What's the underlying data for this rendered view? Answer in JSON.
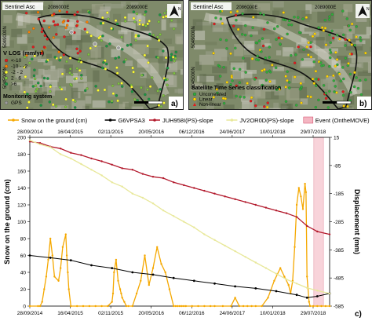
{
  "panel_a": {
    "label": "a)",
    "basemap_label": "Sentinel Asc",
    "north_label": "N",
    "x_ticks": [
      "2086000E",
      "2089000E"
    ],
    "y_ticks": [
      "5049000N",
      "5045000N"
    ],
    "legend": {
      "title": "V LOS (mm/yr)",
      "entries": [
        "<-10",
        "-10 - -2",
        "-2 - 2",
        "2 - 6",
        ">6"
      ],
      "colors": [
        "#e41a1c",
        "#ff7f00",
        "#ffff33",
        "#7fc241",
        "#1a9641"
      ],
      "system_title": "Monitoring system",
      "system_entry": "GPS",
      "system_color": "#9e9e9e"
    }
  },
  "panel_b": {
    "label": "b)",
    "basemap_label": "Sentinel Asc",
    "north_label": "N",
    "x_ticks": [
      "2086000E",
      "2089000E"
    ],
    "y_ticks": [
      "5049000N",
      "5045000N"
    ],
    "legend": {
      "title": "Satellite Time Series classification",
      "entries": [
        "Uncorrelated",
        "Linear",
        "Non-linear"
      ],
      "colors": [
        "#2fae3a",
        "#ffd400",
        "#e41a1c"
      ]
    }
  },
  "chart_data": {
    "type": "line",
    "panel_label": "c)",
    "x_ticks": [
      "28/09/2014",
      "16/04/2015",
      "02/11/2015",
      "20/05/2016",
      "06/12/2016",
      "24/06/2017",
      "10/01/2018",
      "29/07/2018"
    ],
    "x_ticks_top": [
      "28/09/2014",
      "16/04/2015",
      "02/11/2015",
      "20/05/2016",
      "06/12/2016",
      "24/06/2017",
      "10/01/2018",
      "29/07/2018"
    ],
    "ylabel_left": "Snow on the ground (cm)",
    "ylabel_right": "Displacement (mm)",
    "ylim_left": [
      0,
      200
    ],
    "yticks_left": [
      0,
      20,
      40,
      60,
      80,
      100,
      120,
      140,
      160,
      180,
      200
    ],
    "ylim_right": [
      -585,
      15
    ],
    "yticks_right": [
      15,
      -85,
      -185,
      -285,
      -385,
      -485,
      -585
    ],
    "grid": false,
    "legend_position": "top",
    "event": {
      "name": "Event (OntheMOVE)",
      "start": 1383,
      "end": 1430,
      "color": "#f4b6c2"
    },
    "series": [
      {
        "name": "Snow on the ground (cm)",
        "axis": "left",
        "color": "#f5a800",
        "x": [
          0,
          40,
          50,
          60,
          70,
          80,
          90,
          100,
          110,
          120,
          140,
          150,
          160,
          175,
          180,
          185,
          190,
          200,
          230,
          260,
          290,
          320,
          350,
          380,
          400,
          405,
          410,
          420,
          430,
          440,
          445,
          450,
          460,
          470,
          480,
          500,
          520,
          540,
          560,
          580,
          600,
          620,
          640,
          660,
          680,
          700,
          710,
          720,
          730,
          740,
          750,
          760,
          790,
          820,
          850,
          880,
          900,
          940,
          980,
          1000,
          1020,
          1040,
          1060,
          1080,
          1100,
          1130,
          1160,
          1190,
          1220,
          1240,
          1260,
          1270,
          1280,
          1290,
          1300,
          1310,
          1320,
          1330,
          1340,
          1345,
          1350,
          1360,
          1365,
          1380,
          1400,
          1420,
          1440,
          1460
        ],
        "y": [
          0,
          0,
          0,
          5,
          20,
          35,
          55,
          80,
          60,
          35,
          30,
          45,
          70,
          85,
          60,
          40,
          20,
          0,
          0,
          0,
          0,
          0,
          0,
          0,
          5,
          15,
          40,
          55,
          30,
          20,
          15,
          10,
          5,
          0,
          0,
          0,
          15,
          30,
          60,
          25,
          45,
          70,
          50,
          40,
          20,
          0,
          0,
          0,
          0,
          0,
          0,
          0,
          0,
          0,
          0,
          0,
          0,
          0,
          0,
          10,
          0,
          0,
          0,
          0,
          0,
          0,
          10,
          30,
          45,
          35,
          25,
          15,
          30,
          70,
          120,
          140,
          130,
          115,
          145,
          135,
          35,
          5,
          0,
          0,
          0,
          0,
          0,
          0
        ]
      },
      {
        "name": "G6VPSA3",
        "axis": "right",
        "color": "#000000",
        "x": [
          0,
          100,
          200,
          300,
          400,
          500,
          600,
          700,
          800,
          900,
          1000,
          1100,
          1200,
          1300,
          1350,
          1400,
          1460
        ],
        "y": [
          -405,
          -413,
          -422,
          -440,
          -450,
          -465,
          -473,
          -485,
          -495,
          -505,
          -515,
          -522,
          -532,
          -545,
          -555,
          -550,
          -540
        ]
      },
      {
        "name": "JUH958I(PS)-slope",
        "axis": "right",
        "color": "#b2182b",
        "x": [
          0,
          50,
          100,
          150,
          200,
          250,
          300,
          350,
          400,
          450,
          500,
          550,
          600,
          650,
          700,
          750,
          800,
          850,
          900,
          950,
          1000,
          1050,
          1100,
          1150,
          1200,
          1250,
          1300,
          1350,
          1400,
          1460
        ],
        "y": [
          0,
          -5,
          -18,
          -25,
          -40,
          -48,
          -60,
          -70,
          -82,
          -95,
          -100,
          -115,
          -125,
          -130,
          -145,
          -155,
          -165,
          -175,
          -185,
          -195,
          -205,
          -215,
          -225,
          -235,
          -245,
          -255,
          -268,
          -300,
          -320,
          -330
        ]
      },
      {
        "name": "JV2OR0D(PS)-slope",
        "axis": "right",
        "color": "#e8e89a",
        "x": [
          0,
          50,
          100,
          150,
          200,
          250,
          300,
          350,
          400,
          450,
          500,
          550,
          600,
          650,
          700,
          750,
          800,
          850,
          900,
          950,
          1000,
          1050,
          1100,
          1150,
          1200,
          1250,
          1300,
          1350,
          1400,
          1460
        ],
        "y": [
          5,
          -10,
          -20,
          -45,
          -60,
          -80,
          -100,
          -120,
          -145,
          -160,
          -185,
          -200,
          -220,
          -245,
          -265,
          -285,
          -305,
          -330,
          -350,
          -370,
          -390,
          -410,
          -430,
          -450,
          -470,
          -490,
          -505,
          -520,
          -530,
          -540
        ]
      }
    ]
  }
}
